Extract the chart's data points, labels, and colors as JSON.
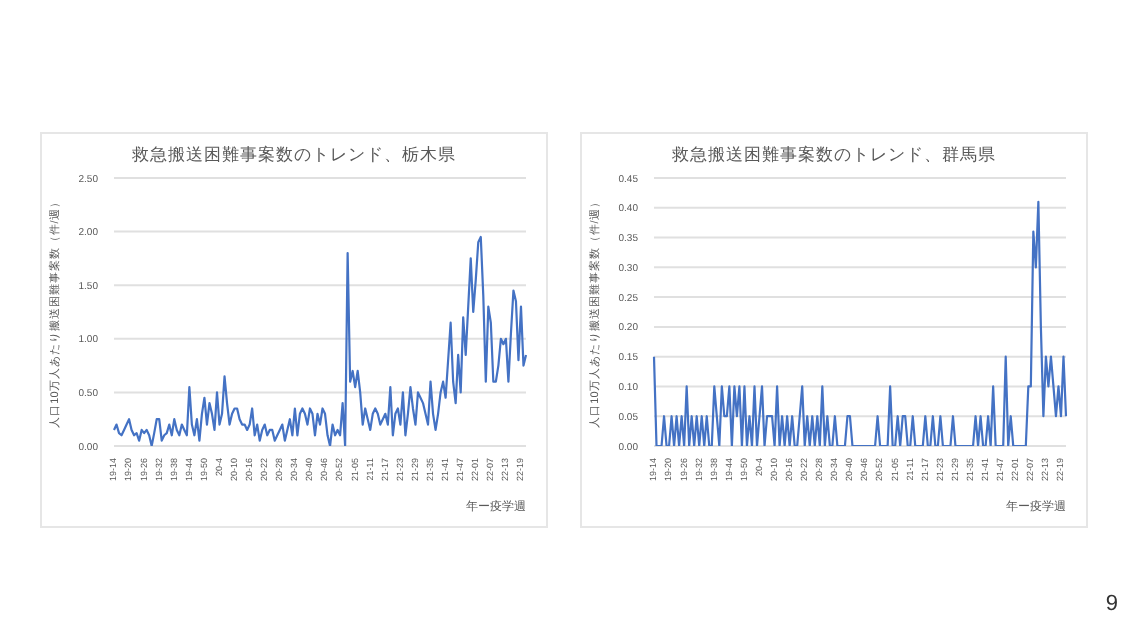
{
  "chart_data": [
    {
      "type": "line",
      "title": "救急搬送困難事案数のトレンド、栃木県",
      "xlabel": "年ー疫学週",
      "ylabel": "人口10万人あたり搬送困難事案数（件/週）",
      "grid": "y",
      "marker": "none",
      "line_style": "solid",
      "categories": [
        "19-14",
        null,
        null,
        null,
        null,
        null,
        "19-20",
        null,
        null,
        null,
        null,
        null,
        "19-26",
        null,
        null,
        null,
        null,
        null,
        "19-32",
        null,
        null,
        null,
        null,
        null,
        "19-38",
        null,
        null,
        null,
        null,
        null,
        "19-44",
        null,
        null,
        null,
        null,
        null,
        "19-50",
        null,
        null,
        null,
        null,
        null,
        "20-4",
        null,
        null,
        null,
        null,
        null,
        "20-10",
        null,
        null,
        null,
        null,
        null,
        "20-16",
        null,
        null,
        null,
        null,
        null,
        "20-22",
        null,
        null,
        null,
        null,
        null,
        "20-28",
        null,
        null,
        null,
        null,
        null,
        "20-34",
        null,
        null,
        null,
        null,
        null,
        "20-40",
        null,
        null,
        null,
        null,
        null,
        "20-46",
        null,
        null,
        null,
        null,
        null,
        "20-52",
        null,
        null,
        null,
        null,
        null,
        "21-05",
        null,
        null,
        null,
        null,
        null,
        "21-11",
        null,
        null,
        null,
        null,
        null,
        "21-17",
        null,
        null,
        null,
        null,
        null,
        "21-23",
        null,
        null,
        null,
        null,
        null,
        "21-29",
        null,
        null,
        null,
        null,
        null,
        "21-35",
        null,
        null,
        null,
        null,
        null,
        "21-41",
        null,
        null,
        null,
        null,
        null,
        "21-47",
        null,
        null,
        null,
        null,
        null,
        "22-01",
        null,
        null,
        null,
        null,
        null,
        "22-07",
        null,
        null,
        null,
        null,
        null,
        "22-13",
        null,
        null,
        null,
        null,
        null,
        "22-19",
        null,
        null
      ],
      "series": [
        {
          "color": "#4472c4",
          "values": [
            0.15,
            0.2,
            0.12,
            0.1,
            0.15,
            0.2,
            0.25,
            0.15,
            0.1,
            0.12,
            0.05,
            0.15,
            0.12,
            0.15,
            0.1,
            0.0,
            0.12,
            0.25,
            0.25,
            0.05,
            0.1,
            0.12,
            0.2,
            0.1,
            0.25,
            0.15,
            0.1,
            0.2,
            0.15,
            0.1,
            0.55,
            0.2,
            0.1,
            0.25,
            0.05,
            0.3,
            0.45,
            0.2,
            0.4,
            0.3,
            0.15,
            0.5,
            0.2,
            0.3,
            0.65,
            0.4,
            0.2,
            0.3,
            0.35,
            0.35,
            0.25,
            0.2,
            0.2,
            0.15,
            0.2,
            0.35,
            0.1,
            0.2,
            0.05,
            0.15,
            0.2,
            0.1,
            0.15,
            0.15,
            0.05,
            0.1,
            0.15,
            0.2,
            0.05,
            0.15,
            0.25,
            0.1,
            0.35,
            0.1,
            0.3,
            0.35,
            0.3,
            0.2,
            0.35,
            0.3,
            0.1,
            0.3,
            0.2,
            0.35,
            0.3,
            0.1,
            0.0,
            0.2,
            0.1,
            0.15,
            0.1,
            0.4,
            0.0,
            1.8,
            0.6,
            0.7,
            0.55,
            0.7,
            0.5,
            0.2,
            0.35,
            0.25,
            0.15,
            0.3,
            0.35,
            0.3,
            0.2,
            0.25,
            0.3,
            0.2,
            0.55,
            0.1,
            0.3,
            0.35,
            0.2,
            0.5,
            0.1,
            0.3,
            0.55,
            0.35,
            0.2,
            0.5,
            0.45,
            0.4,
            0.3,
            0.2,
            0.6,
            0.3,
            0.15,
            0.3,
            0.5,
            0.6,
            0.45,
            0.8,
            1.15,
            0.6,
            0.4,
            0.85,
            0.5,
            1.2,
            0.85,
            1.3,
            1.75,
            1.25,
            1.55,
            1.9,
            1.95,
            1.4,
            0.6,
            1.3,
            1.15,
            0.6,
            0.6,
            0.75,
            1.0,
            0.95,
            1.0,
            0.6,
            1.05,
            1.45,
            1.35,
            0.8,
            1.3,
            0.75,
            0.85
          ]
        }
      ],
      "ylim": [
        0,
        2.5
      ],
      "yticks": [
        {
          "value": 0,
          "label": "0.00"
        },
        {
          "value": 0.5,
          "label": "0.50"
        },
        {
          "value": 1,
          "label": "1.00"
        },
        {
          "value": 1.5,
          "label": "1.50"
        },
        {
          "value": 2,
          "label": "2.00"
        },
        {
          "value": 2.5,
          "label": "2.50"
        }
      ]
    },
    {
      "type": "line",
      "title": "救急搬送困難事案数のトレンド、群馬県",
      "xlabel": "年ー疫学週",
      "ylabel": "人口10万人あたり搬送困難事案数（件/週）",
      "grid": "y",
      "marker": "none",
      "line_style": "solid",
      "annotations": [
        "9"
      ],
      "categories": [
        "19-14",
        null,
        null,
        null,
        null,
        null,
        "19-20",
        null,
        null,
        null,
        null,
        null,
        "19-26",
        null,
        null,
        null,
        null,
        null,
        "19-32",
        null,
        null,
        null,
        null,
        null,
        "19-38",
        null,
        null,
        null,
        null,
        null,
        "19-44",
        null,
        null,
        null,
        null,
        null,
        "19-50",
        null,
        null,
        null,
        null,
        null,
        "20-4",
        null,
        null,
        null,
        null,
        null,
        "20-10",
        null,
        null,
        null,
        null,
        null,
        "20-16",
        null,
        null,
        null,
        null,
        null,
        "20-22",
        null,
        null,
        null,
        null,
        null,
        "20-28",
        null,
        null,
        null,
        null,
        null,
        "20-34",
        null,
        null,
        null,
        null,
        null,
        "20-40",
        null,
        null,
        null,
        null,
        null,
        "20-46",
        null,
        null,
        null,
        null,
        null,
        "20-52",
        null,
        null,
        null,
        null,
        null,
        "21-05",
        null,
        null,
        null,
        null,
        null,
        "21-11",
        null,
        null,
        null,
        null,
        null,
        "21-17",
        null,
        null,
        null,
        null,
        null,
        "21-23",
        null,
        null,
        null,
        null,
        null,
        "21-29",
        null,
        null,
        null,
        null,
        null,
        "21-35",
        null,
        null,
        null,
        null,
        null,
        "21-41",
        null,
        null,
        null,
        null,
        null,
        "21-47",
        null,
        null,
        null,
        null,
        null,
        "22-01",
        null,
        null,
        null,
        null,
        null,
        "22-07",
        null,
        null,
        null,
        null,
        null,
        "22-13",
        null,
        null,
        null,
        null,
        null,
        "22-19",
        null,
        null
      ],
      "series": [
        {
          "color": "#4472c4",
          "values": [
            0.15,
            0,
            0,
            0,
            0.05,
            0,
            0,
            0.05,
            0,
            0.05,
            0,
            0.05,
            0,
            0.1,
            0,
            0.05,
            0,
            0.05,
            0,
            0.05,
            0,
            0.05,
            0,
            0,
            0.1,
            0.05,
            0,
            0.1,
            0.05,
            0.05,
            0.1,
            0,
            0.1,
            0.05,
            0.1,
            0,
            0.1,
            0,
            0.05,
            0,
            0.1,
            0,
            0.05,
            0.1,
            0,
            0.05,
            0.05,
            0.05,
            0,
            0.1,
            0,
            0.05,
            0,
            0.05,
            0,
            0.05,
            0,
            0,
            0.05,
            0.1,
            0,
            0.05,
            0,
            0.05,
            0,
            0.05,
            0,
            0.1,
            0,
            0.05,
            0,
            0,
            0.05,
            0,
            0,
            0,
            0,
            0.05,
            0.05,
            0,
            0,
            0,
            0,
            0,
            0,
            0,
            0,
            0,
            0,
            0.05,
            0,
            0,
            0,
            0,
            0.1,
            0,
            0,
            0.05,
            0,
            0.05,
            0.05,
            0,
            0,
            0.05,
            0,
            0,
            0,
            0,
            0.05,
            0,
            0,
            0.05,
            0,
            0,
            0.05,
            0,
            0,
            0,
            0,
            0.05,
            0,
            0,
            0,
            0,
            0,
            0,
            0,
            0,
            0.05,
            0,
            0.05,
            0,
            0,
            0.05,
            0,
            0.1,
            0,
            0,
            0,
            0,
            0.15,
            0,
            0.05,
            0,
            0,
            0,
            0,
            0,
            0,
            0.1,
            0.1,
            0.36,
            0.3,
            0.41,
            0.2,
            0.05,
            0.15,
            0.1,
            0.15,
            0.1,
            0.05,
            0.1,
            0.05,
            0.15,
            0.05
          ]
        }
      ],
      "ylim": [
        0,
        0.45
      ],
      "yticks": [
        {
          "value": 0,
          "label": "0.00"
        },
        {
          "value": 0.05,
          "label": "0.05"
        },
        {
          "value": 0.1,
          "label": "0.10"
        },
        {
          "value": 0.15,
          "label": "0.15"
        },
        {
          "value": 0.2,
          "label": "0.20"
        },
        {
          "value": 0.25,
          "label": "0.25"
        },
        {
          "value": 0.3,
          "label": "0.30"
        },
        {
          "value": 0.35,
          "label": "0.35"
        },
        {
          "value": 0.4,
          "label": "0.40"
        },
        {
          "value": 0.45,
          "label": "0.45"
        }
      ]
    }
  ]
}
